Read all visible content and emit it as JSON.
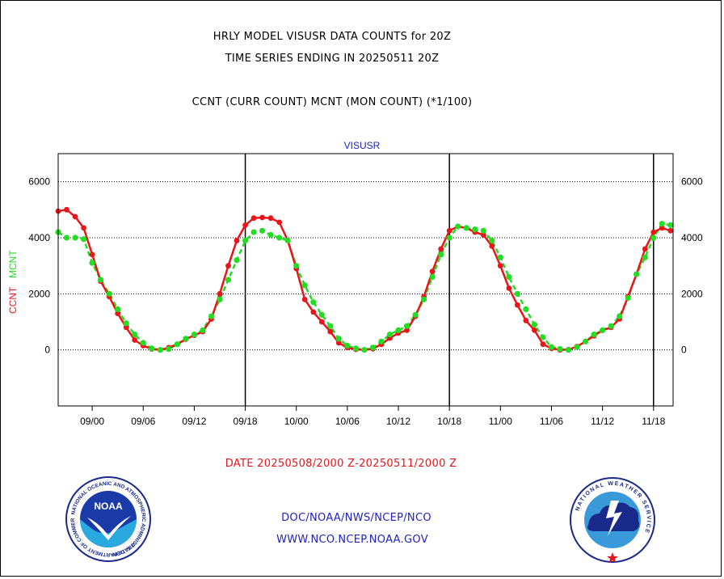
{
  "header": {
    "title_line1": "HRLY MODEL VISUSR DATA COUNTS for 20Z",
    "title_line2": "TIME SERIES ENDING IN 20250511 20Z",
    "subtitle": "CCNT (CURR COUNT) MCNT (MON COUNT) (*1/100)"
  },
  "footer": {
    "date_range": "DATE 20250508/2000 Z-20250511/2000 Z",
    "link1": "DOC/NOAA/NWS/NCEP/NCO",
    "link2": "WWW.NCO.NCEP.NOAA.GOV"
  },
  "logos": {
    "noaa_text": "NOAA",
    "noaa_ring": "NATIONAL OCEANIC AND ATMOSPHERIC ADMINISTRATION",
    "noaa_ring_bottom": "U.S. DEPARTMENT OF COMMERCE",
    "nws_ring": "NATIONAL WEATHER SERVICE"
  },
  "colors": {
    "ccnt": "#e8161b",
    "mcnt": "#22dd22",
    "blue_text": "#2222bb",
    "red_text": "#e8161b"
  },
  "chart_data": {
    "type": "line",
    "title": "VISUSR",
    "ylabel_left_ccnt": "CCNT",
    "ylabel_left_mcnt": "MCNT",
    "x_unit": "hour index from 20250508/2000 Z",
    "x_range": [
      0,
      72
    ],
    "ylim": [
      -2000,
      7000
    ],
    "yticks": [
      0,
      2000,
      4000,
      6000
    ],
    "xtick_labels": [
      {
        "hour": 4,
        "label": "09/00"
      },
      {
        "hour": 10,
        "label": "09/06"
      },
      {
        "hour": 16,
        "label": "09/12"
      },
      {
        "hour": 22,
        "label": "09/18"
      },
      {
        "hour": 28,
        "label": "10/00"
      },
      {
        "hour": 34,
        "label": "10/06"
      },
      {
        "hour": 40,
        "label": "10/12"
      },
      {
        "hour": 46,
        "label": "10/18"
      },
      {
        "hour": 52,
        "label": "11/00"
      },
      {
        "hour": 58,
        "label": "11/06"
      },
      {
        "hour": 64,
        "label": "11/12"
      },
      {
        "hour": 70,
        "label": "11/18"
      }
    ],
    "day_boundaries": [
      22,
      46,
      70
    ],
    "grid": "horizontal dotted",
    "series": [
      {
        "name": "CCNT",
        "values": [
          4950,
          5000,
          4750,
          4350,
          3400,
          2450,
          1900,
          1300,
          800,
          350,
          150,
          30,
          0,
          80,
          200,
          380,
          520,
          650,
          1100,
          2000,
          3000,
          3900,
          4450,
          4700,
          4720,
          4700,
          4550,
          3900,
          2900,
          1800,
          1350,
          1000,
          650,
          250,
          80,
          20,
          0,
          40,
          200,
          420,
          600,
          700,
          1200,
          1900,
          2800,
          3600,
          4250,
          4400,
          4350,
          4200,
          4100,
          3700,
          3000,
          2200,
          1600,
          1050,
          700,
          200,
          50,
          0,
          10,
          120,
          300,
          500,
          700,
          800,
          1100,
          1900,
          2700,
          3600,
          4200,
          4350,
          4250
        ]
      },
      {
        "name": "MCNT",
        "values": [
          4200,
          4000,
          4000,
          3950,
          3100,
          2500,
          2000,
          1450,
          950,
          550,
          250,
          50,
          0,
          30,
          200,
          400,
          550,
          700,
          1200,
          1800,
          2500,
          3200,
          3900,
          4200,
          4250,
          4100,
          4000,
          3900,
          3000,
          2300,
          1700,
          1250,
          850,
          400,
          150,
          50,
          0,
          80,
          300,
          550,
          700,
          850,
          1250,
          1800,
          2600,
          3400,
          4000,
          4400,
          4350,
          4300,
          4250,
          3900,
          3300,
          2600,
          2000,
          1450,
          900,
          450,
          100,
          30,
          0,
          100,
          300,
          550,
          700,
          850,
          1200,
          1850,
          2700,
          3300,
          4000,
          4500,
          4450
        ]
      }
    ]
  }
}
